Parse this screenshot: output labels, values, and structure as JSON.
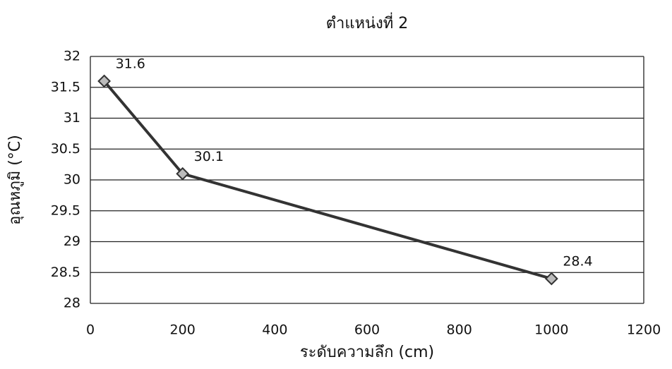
{
  "chart_data": {
    "type": "line",
    "title": "ตำแหน่งที่ 2",
    "x_label": "ระดับความลึก (cm)",
    "y_label": "อุณหภูมิ (°C)",
    "x": [
      30,
      200,
      1000
    ],
    "values": [
      31.6,
      30.1,
      28.4
    ],
    "color": "#333333",
    "xlim": [
      0,
      1200
    ],
    "xticks": [
      0,
      200,
      400,
      600,
      800,
      1000,
      1200
    ],
    "ylim": [
      28,
      32
    ],
    "yticks": [
      28,
      28.5,
      29,
      29.5,
      30,
      30.5,
      31,
      31.5,
      32
    ],
    "grid": true
  }
}
